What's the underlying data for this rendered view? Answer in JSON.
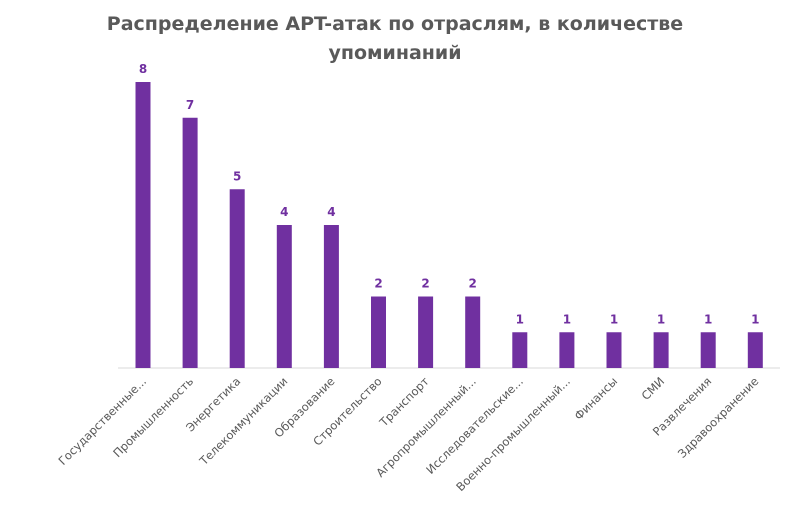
{
  "chart_data": {
    "type": "bar",
    "title": "Распределение APT-атак по отраслям, в количестве упоминаний",
    "title_lines": [
      "Распределение APT-атак по отраслям, в количестве",
      "упоминаний"
    ],
    "categories": [
      "Государственные...",
      "Промышленность",
      "Энергетика",
      "Телекоммуникации",
      "Образование",
      "Строительство",
      "Транспорт",
      "Агропромышленный...",
      "Исследовательские...",
      "Военно-промышленный...",
      "Финансы",
      "СМИ",
      "Развлечения",
      "Здравоохранение"
    ],
    "values": [
      8,
      7,
      5,
      4,
      4,
      2,
      2,
      2,
      1,
      1,
      1,
      1,
      1,
      1
    ],
    "data_labels": true,
    "ylim": [
      0,
      8
    ],
    "grid": false,
    "bar_color": "#7030a0",
    "xlabel": "",
    "ylabel": ""
  }
}
